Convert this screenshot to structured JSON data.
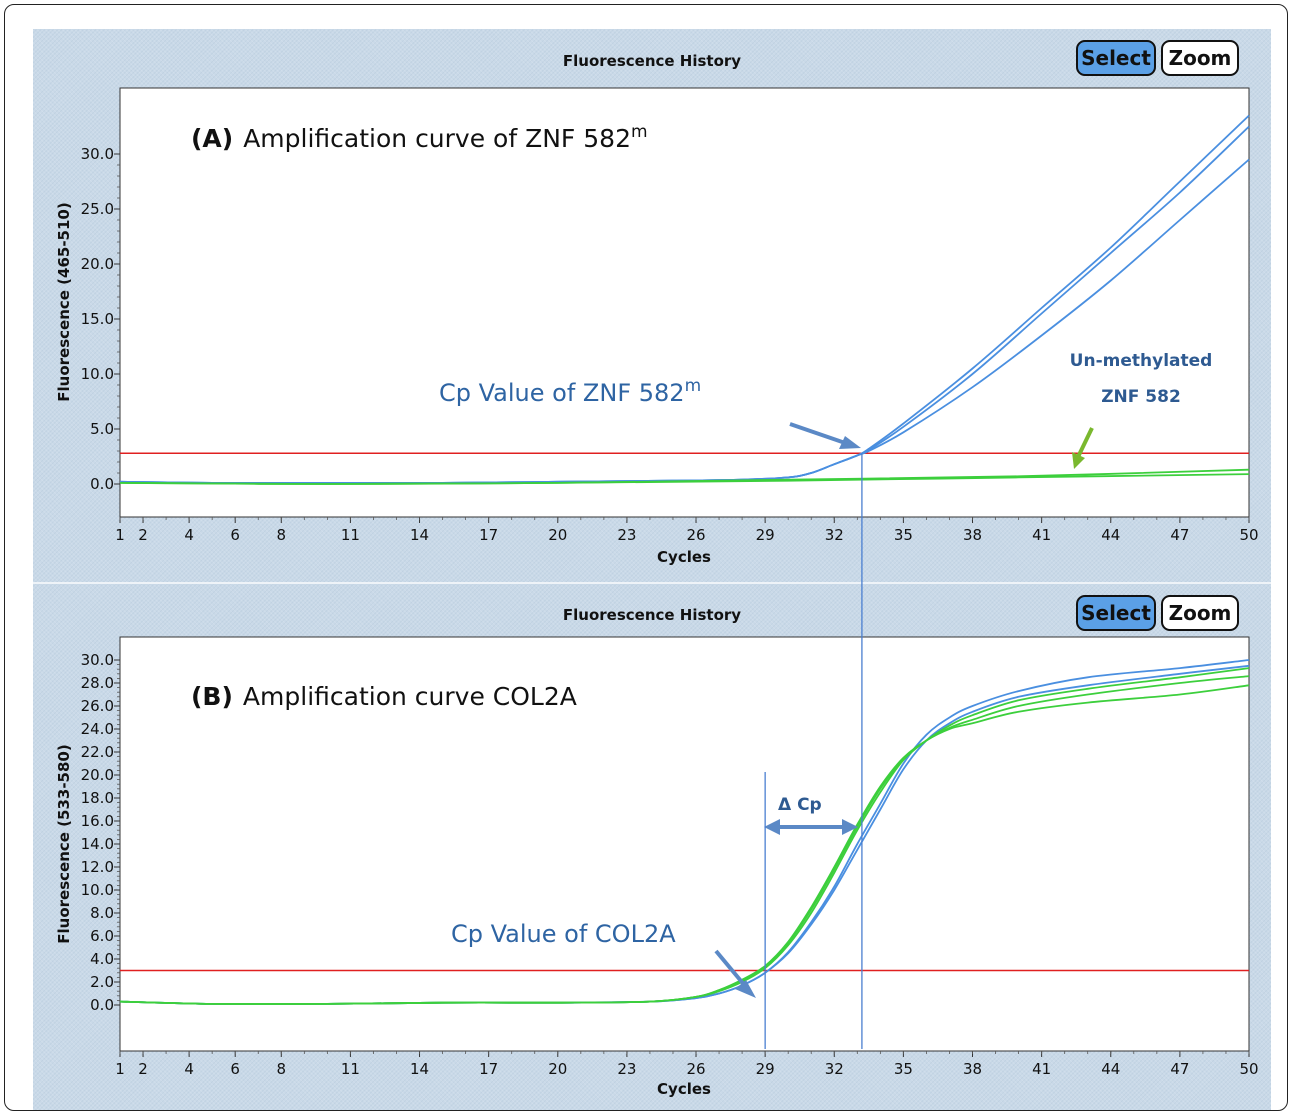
{
  "colors": {
    "blue": "#4a8fe0",
    "green": "#3ccf3c",
    "threshold": "#e02020",
    "annotation": "#2e64a3",
    "arrow": "#5b89c6",
    "green_arrow": "#7ab82e"
  },
  "buttons": {
    "select": "Select",
    "zoom": "Zoom"
  },
  "chart_data": [
    {
      "type": "line",
      "window_title": "Fluorescence History",
      "title": "(A) Amplification curve of ZNF 582m",
      "title_parts": {
        "letter": "(A)",
        "text": "Amplification curve of ZNF 582",
        "superscript": "m"
      },
      "xlabel": "Cycles",
      "ylabel": "Fluorescence (465-510)",
      "xlim": [
        1,
        50
      ],
      "ylim": [
        -3,
        36
      ],
      "x_ticks": [
        1,
        2,
        4,
        6,
        8,
        11,
        14,
        17,
        20,
        23,
        26,
        29,
        32,
        35,
        38,
        41,
        44,
        47,
        50
      ],
      "y_ticks": [
        "0.0",
        "5.0",
        "10.0",
        "15.0",
        "20.0",
        "25.0",
        "30.0"
      ],
      "threshold": 2.8,
      "cp_line_x": 33.2,
      "series": [
        {
          "color": "#4a8fe0",
          "x": [
            1,
            5,
            10,
            15,
            20,
            25,
            28,
            30,
            31,
            32,
            33,
            33.5,
            35,
            38,
            41,
            44,
            47,
            50
          ],
          "y": [
            0.2,
            0.1,
            0.1,
            0.1,
            0.2,
            0.3,
            0.4,
            0.6,
            1.0,
            1.8,
            2.6,
            3.2,
            5.5,
            10.5,
            16,
            21.5,
            27.5,
            33.5
          ]
        },
        {
          "color": "#4a8fe0",
          "x": [
            1,
            5,
            10,
            15,
            20,
            25,
            28,
            30,
            31,
            32,
            33,
            33.5,
            35,
            38,
            41,
            44,
            47,
            50
          ],
          "y": [
            0.2,
            0.1,
            0.1,
            0.1,
            0.2,
            0.3,
            0.4,
            0.6,
            1.0,
            1.8,
            2.6,
            3.1,
            5.2,
            10,
            15.5,
            21,
            26.5,
            32.5
          ]
        },
        {
          "color": "#4a8fe0",
          "x": [
            1,
            5,
            10,
            15,
            20,
            25,
            28,
            30,
            31,
            32,
            33,
            33.5,
            35,
            38,
            41,
            44,
            47,
            50
          ],
          "y": [
            0.2,
            0.1,
            0.1,
            0.1,
            0.2,
            0.3,
            0.4,
            0.6,
            1.0,
            1.8,
            2.6,
            3.0,
            4.7,
            8.8,
            13.5,
            18.5,
            24,
            29.5
          ]
        },
        {
          "color": "#3ccf3c",
          "x": [
            1,
            10,
            20,
            30,
            40,
            50
          ],
          "y": [
            0.1,
            0.0,
            0.1,
            0.4,
            0.7,
            1.3
          ]
        },
        {
          "color": "#3ccf3c",
          "x": [
            1,
            10,
            20,
            30,
            40,
            50
          ],
          "y": [
            0.1,
            0.0,
            0.1,
            0.3,
            0.6,
            0.9
          ]
        }
      ],
      "annotations": {
        "cp_label": "Cp Value of ZNF 582",
        "cp_sup": "m",
        "unmeth_line1": "Un-methylated",
        "unmeth_line2": "ZNF 582"
      }
    },
    {
      "type": "line",
      "window_title": "Fluorescence History",
      "title": "(B) Amplification curve COL2A",
      "title_parts": {
        "letter": "(B)",
        "text": "Amplification curve COL2A"
      },
      "xlabel": "Cycles",
      "ylabel": "Fluorescence (533-580)",
      "xlim": [
        1,
        50
      ],
      "ylim": [
        -4,
        32
      ],
      "x_ticks": [
        1,
        2,
        4,
        6,
        8,
        11,
        14,
        17,
        20,
        23,
        26,
        29,
        32,
        35,
        38,
        41,
        44,
        47,
        50
      ],
      "y_ticks": [
        "0.0",
        "2.0",
        "4.0",
        "6.0",
        "8.0",
        "10.0",
        "12.0",
        "14.0",
        "16.0",
        "18.0",
        "20.0",
        "22.0",
        "24.0",
        "26.0",
        "28.0",
        "30.0"
      ],
      "threshold": 3.0,
      "cp_line_x": [
        29,
        33.2
      ],
      "series": [
        {
          "color": "#4a8fe0",
          "x": [
            1,
            5,
            10,
            15,
            20,
            24,
            26,
            27,
            28,
            29,
            30,
            31,
            32,
            33,
            34,
            35,
            36,
            37,
            38,
            40,
            43,
            47,
            50
          ],
          "y": [
            0.3,
            0.1,
            0.1,
            0.2,
            0.2,
            0.3,
            0.6,
            1.0,
            1.7,
            2.8,
            4.5,
            7.0,
            10.0,
            13.5,
            17.0,
            20.5,
            23.0,
            24.5,
            25.5,
            26.8,
            27.8,
            28.8,
            29.5
          ]
        },
        {
          "color": "#4a8fe0",
          "x": [
            1,
            5,
            10,
            15,
            20,
            24,
            26,
            27,
            28,
            29,
            30,
            31,
            32,
            33,
            34,
            35,
            36,
            37,
            38,
            40,
            43,
            47,
            50
          ],
          "y": [
            0.3,
            0.1,
            0.1,
            0.2,
            0.2,
            0.3,
            0.6,
            1.0,
            1.7,
            2.8,
            4.6,
            7.2,
            10.3,
            14.0,
            17.5,
            21.0,
            23.5,
            25.0,
            26.0,
            27.3,
            28.5,
            29.3,
            30.0
          ]
        },
        {
          "color": "#3ccf3c",
          "x": [
            1,
            5,
            10,
            15,
            20,
            24,
            26,
            27,
            28,
            29,
            30,
            31,
            32,
            33,
            34,
            35,
            36,
            37,
            38,
            40,
            43,
            47,
            50
          ],
          "y": [
            0.3,
            0.1,
            0.1,
            0.2,
            0.2,
            0.3,
            0.7,
            1.3,
            2.2,
            3.4,
            5.5,
            8.5,
            12.0,
            15.7,
            19.0,
            21.5,
            23.0,
            24.0,
            24.5,
            25.5,
            26.3,
            27.0,
            27.8
          ]
        },
        {
          "color": "#3ccf3c",
          "x": [
            1,
            5,
            10,
            15,
            20,
            24,
            26,
            27,
            28,
            29,
            30,
            31,
            32,
            33,
            34,
            35,
            36,
            37,
            38,
            40,
            43,
            47,
            50
          ],
          "y": [
            0.3,
            0.1,
            0.1,
            0.2,
            0.2,
            0.3,
            0.7,
            1.3,
            2.1,
            3.3,
            5.4,
            8.3,
            11.8,
            15.5,
            18.8,
            21.4,
            23.0,
            24.1,
            24.8,
            26.0,
            27.0,
            28.0,
            28.6
          ]
        },
        {
          "color": "#3ccf3c",
          "x": [
            1,
            5,
            10,
            15,
            20,
            24,
            26,
            27,
            28,
            29,
            30,
            31,
            32,
            33,
            34,
            35,
            36,
            37,
            38,
            40,
            43,
            47,
            50
          ],
          "y": [
            0.3,
            0.1,
            0.1,
            0.2,
            0.2,
            0.3,
            0.7,
            1.2,
            2.0,
            3.2,
            5.2,
            8.0,
            11.5,
            15.2,
            18.5,
            21.3,
            23.0,
            24.3,
            25.2,
            26.5,
            27.5,
            28.5,
            29.3
          ]
        }
      ],
      "annotations": {
        "delta_label": "Δ Cp",
        "cp_label": "Cp Value of COL2A"
      }
    }
  ]
}
